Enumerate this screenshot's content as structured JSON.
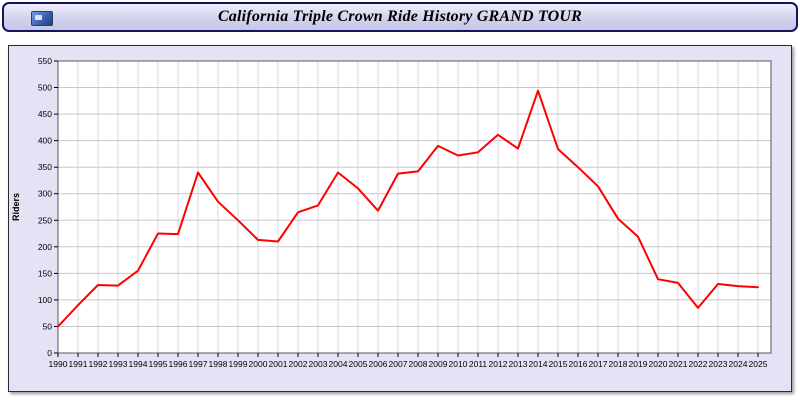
{
  "header": {
    "title": "California Triple Crown Ride History GRAND TOUR"
  },
  "chart_data": {
    "type": "line",
    "title": "California Triple Crown Ride History GRAND TOUR",
    "xlabel": "",
    "ylabel": "Riders",
    "ylim": [
      0,
      550
    ],
    "ytick_step": 50,
    "grid": true,
    "legend": "none",
    "line_color": "#ff0000",
    "plot_bg": "#ffffff",
    "panel_bg": "#e3e3f5",
    "categories": [
      "1990",
      "1991",
      "1992",
      "1993",
      "1994",
      "1995",
      "1996",
      "1997",
      "1998",
      "1999",
      "2000",
      "2001",
      "2002",
      "2003",
      "2004",
      "2005",
      "2006",
      "2007",
      "2008",
      "2009",
      "2010",
      "2011",
      "2012",
      "2013",
      "2014",
      "2015",
      "2016",
      "2017",
      "2018",
      "2019",
      "2020",
      "2021",
      "2022",
      "2023",
      "2024",
      "2025"
    ],
    "values": [
      50,
      90,
      128,
      127,
      155,
      225,
      224,
      340,
      285,
      250,
      213,
      210,
      265,
      278,
      340,
      310,
      268,
      338,
      342,
      390,
      372,
      378,
      411,
      385,
      494,
      384,
      350,
      314,
      253,
      219,
      139,
      132,
      85,
      130,
      126,
      124
    ]
  }
}
